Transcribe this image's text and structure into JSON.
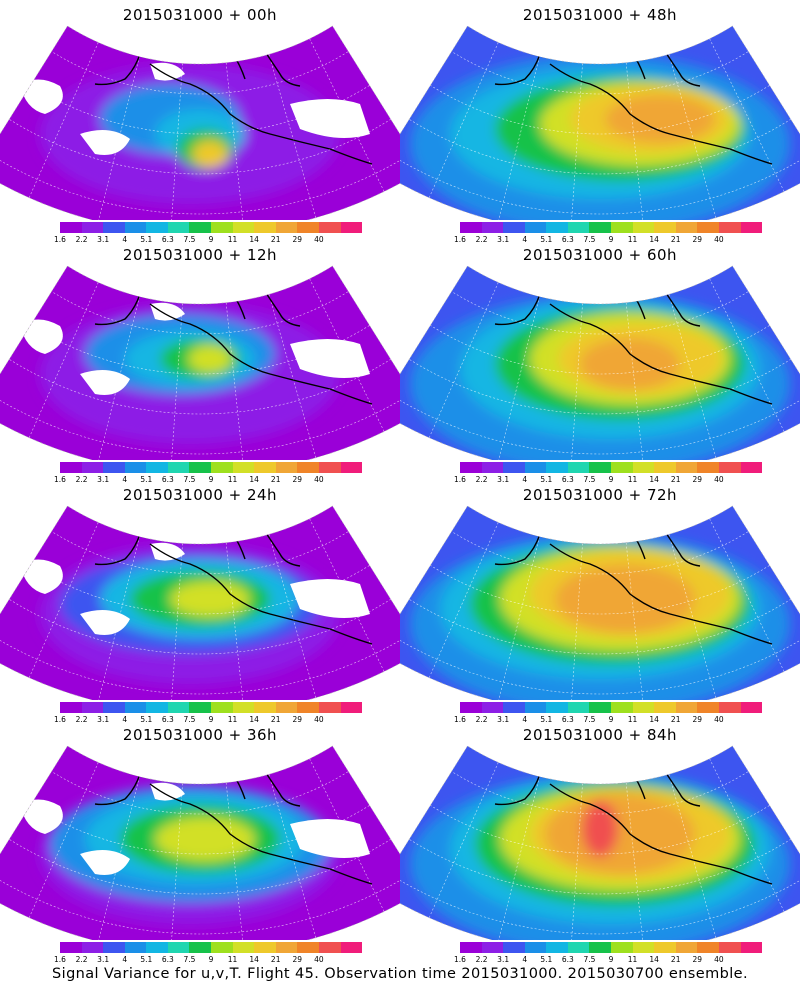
{
  "colorbar": {
    "colors": [
      "#9a00d8",
      "#8d1fe6",
      "#3d55f0",
      "#1a8fe8",
      "#12b6e3",
      "#1fd6b0",
      "#16c24a",
      "#9ee01e",
      "#d2e027",
      "#eec92b",
      "#f0a636",
      "#f08428",
      "#f05050",
      "#f01c7a"
    ],
    "labels": [
      "1.6",
      "2.2",
      "3.1",
      "4",
      "5.1",
      "6.3",
      "7.5",
      "9",
      "11",
      "14",
      "21",
      "29",
      "40"
    ]
  },
  "panels": [
    {
      "id": "p00",
      "title": "2015031000 + 00h"
    },
    {
      "id": "p48",
      "title": "2015031000 + 48h"
    },
    {
      "id": "p12",
      "title": "2015031000 + 12h"
    },
    {
      "id": "p60",
      "title": "2015031000 + 60h"
    },
    {
      "id": "p24",
      "title": "2015031000 + 24h"
    },
    {
      "id": "p72",
      "title": "2015031000 + 72h"
    },
    {
      "id": "p36",
      "title": "2015031000 + 36h"
    },
    {
      "id": "p84",
      "title": "2015031000 + 84h"
    }
  ],
  "footer": "Signal Variance for u,v,T. Flight 45. Observation time 2015031000. 2015030700 ensemble."
}
